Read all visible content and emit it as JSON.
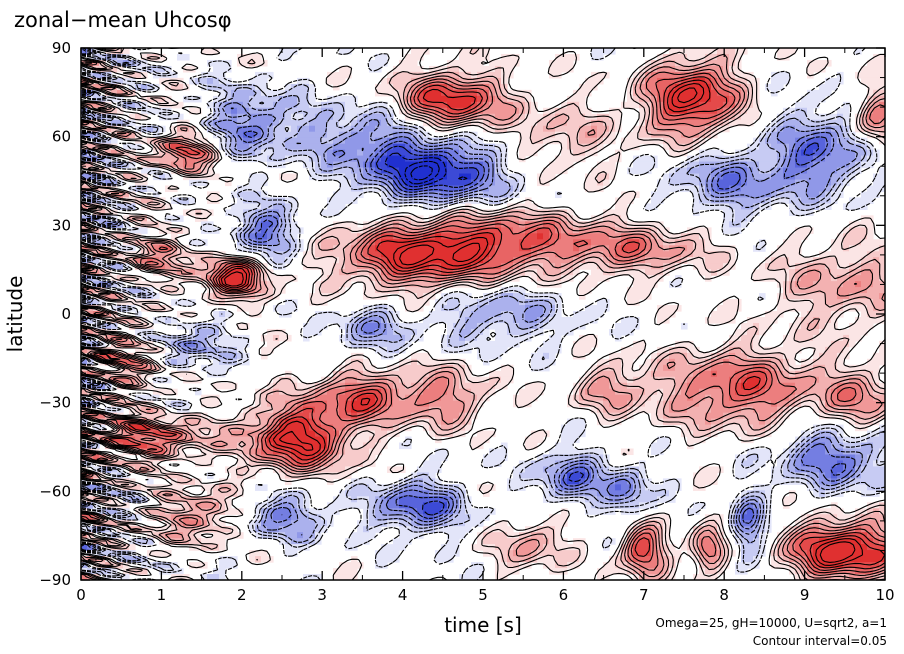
{
  "chart_data": {
    "type": "heatmap",
    "title": "zonal−mean Uhcosφ",
    "xlabel": "time [s]",
    "ylabel": "latitude",
    "xlim": [
      0,
      10
    ],
    "ylim": [
      -90,
      90
    ],
    "x_ticks": [
      "0",
      "1",
      "2",
      "3",
      "4",
      "5",
      "6",
      "7",
      "8",
      "9",
      "10"
    ],
    "y_ticks": [
      "90",
      "60",
      "30",
      "0",
      "−30",
      "−60",
      "−90"
    ],
    "y_tick_values": [
      90,
      60,
      30,
      0,
      -30,
      -60,
      -90
    ],
    "x_tick_values": [
      0,
      1,
      2,
      3,
      4,
      5,
      6,
      7,
      8,
      9,
      10
    ],
    "annotation_params": "Omega=25, gH=10000, U=sqrt2, a=1",
    "annotation_interval": "Contour interval=0.05",
    "contour_interval": 0.05,
    "positive_color": "#e03030",
    "negative_color": "#2030d0",
    "features": [
      {
        "t": 4.6,
        "lat": 72,
        "sx": 0.45,
        "sy": 7,
        "v": 0.45
      },
      {
        "t": 7.6,
        "lat": 73,
        "sx": 0.4,
        "sy": 9,
        "v": 0.5
      },
      {
        "t": 4.4,
        "lat": 48,
        "sx": 0.6,
        "sy": 8,
        "v": -0.45
      },
      {
        "t": 9.2,
        "lat": 55,
        "sx": 0.4,
        "sy": 10,
        "v": -0.3
      },
      {
        "t": 4.2,
        "lat": 20,
        "sx": 0.7,
        "sy": 8,
        "v": 0.45
      },
      {
        "t": 5.4,
        "lat": 25,
        "sx": 0.7,
        "sy": 7,
        "v": 0.3
      },
      {
        "t": 6.9,
        "lat": 22,
        "sx": 0.6,
        "sy": 6,
        "v": 0.25
      },
      {
        "t": 1.9,
        "lat": 12,
        "sx": 0.25,
        "sy": 5,
        "v": 0.5
      },
      {
        "t": 2.7,
        "lat": -42,
        "sx": 0.45,
        "sy": 8,
        "v": 0.5
      },
      {
        "t": 3.5,
        "lat": -28,
        "sx": 0.4,
        "sy": 6,
        "v": 0.35
      },
      {
        "t": 0.8,
        "lat": -42,
        "sx": 0.5,
        "sy": 5,
        "v": 0.35
      },
      {
        "t": 8.2,
        "lat": -25,
        "sx": 0.7,
        "sy": 9,
        "v": 0.35
      },
      {
        "t": 9.5,
        "lat": -80,
        "sx": 0.5,
        "sy": 7,
        "v": 0.55
      },
      {
        "t": 7.0,
        "lat": -80,
        "sx": 0.2,
        "sy": 6,
        "v": 0.4
      },
      {
        "t": 7.8,
        "lat": -80,
        "sx": 0.15,
        "sy": 5,
        "v": 0.35
      },
      {
        "t": 4.2,
        "lat": -65,
        "sx": 0.4,
        "sy": 6,
        "v": -0.35
      },
      {
        "t": 6.1,
        "lat": -55,
        "sx": 0.3,
        "sy": 6,
        "v": -0.3
      },
      {
        "t": 9.4,
        "lat": -48,
        "sx": 0.5,
        "sy": 8,
        "v": -0.3
      },
      {
        "t": 1.3,
        "lat": 55,
        "sx": 0.25,
        "sy": 5,
        "v": 0.35
      },
      {
        "t": 2.1,
        "lat": 65,
        "sx": 0.4,
        "sy": 8,
        "v": -0.25
      },
      {
        "t": 9.9,
        "lat": 67,
        "sx": 0.2,
        "sy": 7,
        "v": 0.3
      },
      {
        "t": 5.2,
        "lat": 0,
        "sx": 0.6,
        "sy": 7,
        "v": -0.2
      },
      {
        "t": 2.3,
        "lat": 28,
        "sx": 0.3,
        "sy": 6,
        "v": -0.3
      },
      {
        "t": 4.5,
        "lat": -28,
        "sx": 0.4,
        "sy": 7,
        "v": 0.25
      },
      {
        "t": 6.6,
        "lat": -25,
        "sx": 0.3,
        "sy": 6,
        "v": 0.2
      },
      {
        "t": 9.5,
        "lat": 10,
        "sx": 0.6,
        "sy": 10,
        "v": 0.2
      },
      {
        "t": 8.1,
        "lat": 45,
        "sx": 0.5,
        "sy": 8,
        "v": -0.25
      },
      {
        "t": 3.5,
        "lat": 60,
        "sx": 0.6,
        "sy": 8,
        "v": -0.2
      },
      {
        "t": 1.5,
        "lat": -68,
        "sx": 0.4,
        "sy": 6,
        "v": 0.25
      },
      {
        "t": 2.5,
        "lat": -68,
        "sx": 0.4,
        "sy": 6,
        "v": -0.25
      },
      {
        "t": 5.6,
        "lat": -78,
        "sx": 0.3,
        "sy": 6,
        "v": 0.2
      },
      {
        "t": 8.3,
        "lat": -72,
        "sx": 0.15,
        "sy": 8,
        "v": -0.3
      },
      {
        "t": 6.8,
        "lat": -60,
        "sx": 0.2,
        "sy": 6,
        "v": -0.25
      },
      {
        "t": 1.0,
        "lat": 20,
        "sx": 0.3,
        "sy": 6,
        "v": 0.2
      },
      {
        "t": 0.6,
        "lat": -15,
        "sx": 0.3,
        "sy": 8,
        "v": 0.2
      },
      {
        "t": 1.4,
        "lat": -10,
        "sx": 0.3,
        "sy": 6,
        "v": -0.2
      },
      {
        "t": 3.6,
        "lat": -5,
        "sx": 0.3,
        "sy": 6,
        "v": -0.2
      },
      {
        "t": 6.0,
        "lat": 60,
        "sx": 0.5,
        "sy": 8,
        "v": 0.15
      },
      {
        "t": 9.7,
        "lat": -30,
        "sx": 0.3,
        "sy": 8,
        "v": 0.25
      }
    ]
  }
}
